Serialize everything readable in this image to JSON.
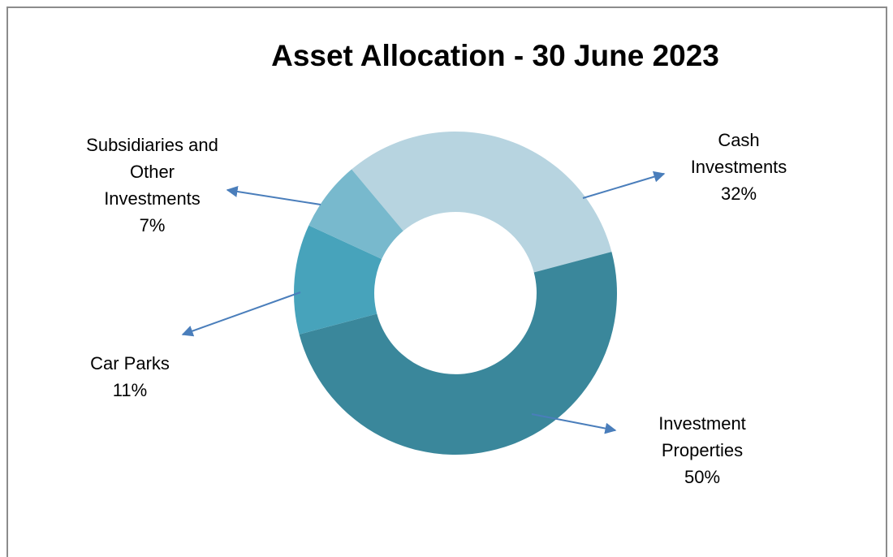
{
  "chart_data": {
    "type": "donut",
    "title": "Asset Allocation - 30 June 2023",
    "categories": [
      "Cash Investments",
      "Investment Properties",
      "Car Parks",
      "Subsidiaries and Other Investments"
    ],
    "values": [
      32,
      50,
      11,
      7
    ],
    "value_labels": [
      "32%",
      "50%",
      "11%",
      "7%"
    ],
    "colors": [
      "#b7d4e0",
      "#3a879b",
      "#47a3bb",
      "#78b9cd"
    ]
  }
}
